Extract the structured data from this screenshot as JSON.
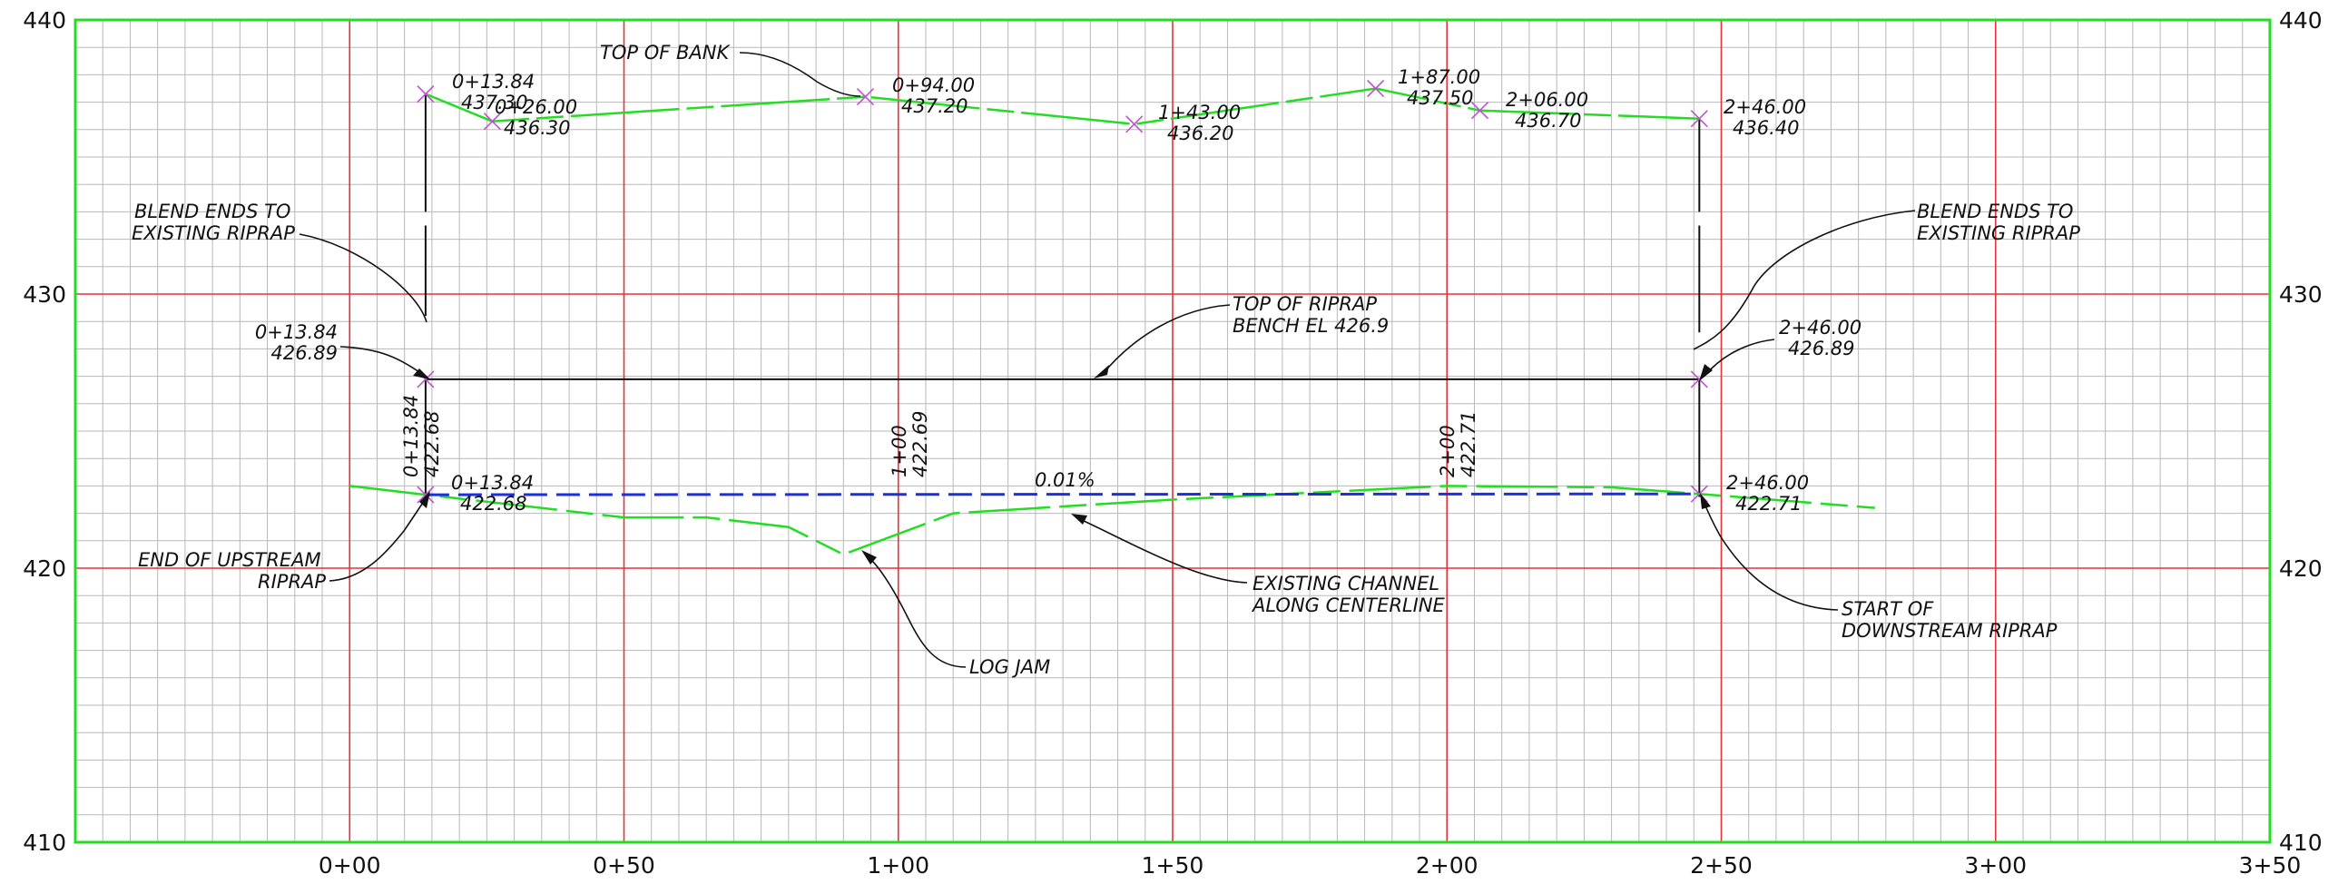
{
  "colors": {
    "frame": "#22dd22",
    "major_grid": "#e8313a",
    "minor_grid": "#b8b8b8",
    "ground": "#22dd22",
    "design_grade": "#1c2fe0",
    "riprap": "#111111",
    "point_marker": "#c050d0",
    "text": "#111111"
  },
  "y_axis": {
    "min": 410,
    "max": 440,
    "ticks": [
      {
        "value": 410,
        "label": "410"
      },
      {
        "value": 420,
        "label": "420"
      },
      {
        "value": 430,
        "label": "430"
      },
      {
        "value": 440,
        "label": "440"
      }
    ]
  },
  "x_axis": {
    "min": -50,
    "max": 350,
    "ticks": [
      {
        "value": 0,
        "label": "0+00"
      },
      {
        "value": 50,
        "label": "0+50"
      },
      {
        "value": 100,
        "label": "1+00"
      },
      {
        "value": 150,
        "label": "1+50"
      },
      {
        "value": 200,
        "label": "2+00"
      },
      {
        "value": 250,
        "label": "2+50"
      },
      {
        "value": 300,
        "label": "3+00"
      },
      {
        "value": 350,
        "label": "3+50"
      }
    ]
  },
  "profiles": {
    "top_of_bank": [
      [
        13.84,
        437.3
      ],
      [
        26.0,
        436.3
      ],
      [
        94.0,
        437.2
      ],
      [
        143.0,
        436.2
      ],
      [
        187.0,
        437.5
      ],
      [
        206.0,
        436.7
      ],
      [
        246.0,
        436.4
      ]
    ],
    "existing_channel": [
      [
        0,
        423.0
      ],
      [
        13.84,
        422.68
      ],
      [
        50,
        421.85
      ],
      [
        65,
        421.85
      ],
      [
        80,
        421.5
      ],
      [
        90,
        420.5
      ],
      [
        110,
        422.0
      ],
      [
        150,
        422.5
      ],
      [
        200,
        423.0
      ],
      [
        230,
        422.95
      ],
      [
        246,
        422.71
      ],
      [
        278,
        422.2
      ]
    ],
    "design_grade": [
      [
        13.84,
        422.68
      ],
      [
        246.0,
        422.71
      ]
    ],
    "riprap_bench": [
      [
        13.84,
        426.89
      ],
      [
        246.0,
        426.89
      ]
    ]
  },
  "labels": {
    "top_of_bank": "TOP OF BANK",
    "blend_left": [
      "BLEND ENDS TO",
      "EXISTING RIPRAP"
    ],
    "blend_right": [
      "BLEND ENDS TO",
      "EXISTING RIPRAP"
    ],
    "riprap_bench": [
      "TOP OF RIPRAP",
      "BENCH EL 426.9"
    ],
    "end_upstream": [
      "END OF UPSTREAM",
      "RIPRAP"
    ],
    "start_downstream": [
      "START OF",
      "DOWNSTREAM RIPRAP"
    ],
    "existing_channel": [
      "EXISTING CHANNEL",
      "ALONG CENTERLINE"
    ],
    "log_jam": "LOG JAM",
    "slope": "0.01%"
  },
  "bank_points": [
    {
      "sta": "0+13.84",
      "elev": "437.30"
    },
    {
      "sta": "0+26.00",
      "elev": "436.30"
    },
    {
      "sta": "0+94.00",
      "elev": "437.20"
    },
    {
      "sta": "1+43.00",
      "elev": "436.20"
    },
    {
      "sta": "1+87.00",
      "elev": "437.50"
    },
    {
      "sta": "2+06.00",
      "elev": "436.70"
    },
    {
      "sta": "2+46.00",
      "elev": "436.40"
    }
  ],
  "bench_points": [
    {
      "sta": "0+13.84",
      "elev": "426.89"
    },
    {
      "sta": "2+46.00",
      "elev": "426.89"
    }
  ],
  "grade_points": [
    {
      "sta": "0+13.84",
      "elev": "422.68"
    },
    {
      "sta": "2+46.00",
      "elev": "422.71"
    }
  ],
  "vertical_labels": [
    {
      "sta": "0+13.84",
      "elev": "422.68"
    },
    {
      "sta": "1+00",
      "elev": "422.69"
    },
    {
      "sta": "2+00",
      "elev": "422.71"
    }
  ]
}
